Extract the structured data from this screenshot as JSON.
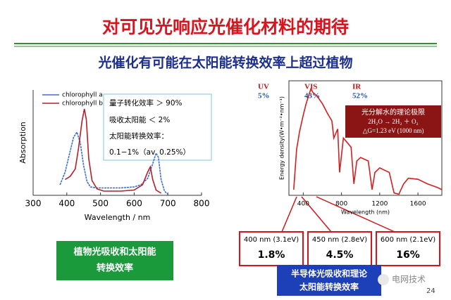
{
  "title": "对可见光响应光催化材料的期待",
  "subtitle": "光催化有可能在太阳能转换效率上超过植物",
  "chart_data": [
    {
      "type": "line",
      "xlabel": "Wavelength / nm",
      "ylabel": "Absorption",
      "xlim": [
        300,
        800
      ],
      "xticks": [
        300,
        400,
        500,
        600,
        700,
        800
      ],
      "ylim": [
        0,
        1
      ],
      "series": [
        {
          "name": "chlorophyll a",
          "color": "#3d6fd0",
          "x": [
            380,
            395,
            410,
            420,
            430,
            440,
            450,
            460,
            470,
            490,
            520,
            560,
            600,
            620,
            640,
            655,
            665,
            672,
            680,
            690,
            700
          ],
          "values": [
            0.1,
            0.22,
            0.42,
            0.55,
            0.6,
            0.5,
            0.28,
            0.13,
            0.08,
            0.07,
            0.07,
            0.07,
            0.08,
            0.1,
            0.16,
            0.3,
            0.4,
            0.36,
            0.15,
            0.04,
            0.01
          ]
        },
        {
          "name": "chlorophyll b",
          "color": "#b0202a",
          "x": [
            395,
            410,
            425,
            435,
            445,
            452,
            458,
            465,
            475,
            490,
            510,
            560,
            600,
            625,
            640,
            648,
            655,
            665,
            680
          ],
          "values": [
            0.15,
            0.18,
            0.25,
            0.45,
            0.7,
            0.82,
            0.72,
            0.35,
            0.14,
            0.06,
            0.04,
            0.04,
            0.05,
            0.1,
            0.22,
            0.27,
            0.15,
            0.05,
            0.02
          ]
        }
      ]
    },
    {
      "type": "line",
      "xlabel": "Wavelength (nm)",
      "ylabel": "Energy density(W•m⁻²•nm⁻¹)",
      "xlim": [
        250,
        1850
      ],
      "xticks": [
        400,
        800,
        1200,
        1600
      ],
      "ylim": [
        0,
        1
      ],
      "series": [
        {
          "name": "solar spectrum",
          "color": "#d02020",
          "x": [
            300,
            330,
            360,
            400,
            430,
            460,
            480,
            500,
            550,
            600,
            650,
            700,
            720,
            760,
            780,
            820,
            900,
            930,
            960,
            1000,
            1080,
            1120,
            1150,
            1200,
            1300,
            1350,
            1400,
            1450,
            1500,
            1600,
            1700,
            1800,
            1850
          ],
          "values": [
            0.05,
            0.4,
            0.55,
            0.7,
            0.8,
            0.88,
            0.93,
            0.9,
            0.86,
            0.8,
            0.72,
            0.65,
            0.5,
            0.58,
            0.2,
            0.5,
            0.42,
            0.1,
            0.3,
            0.33,
            0.3,
            0.05,
            0.2,
            0.24,
            0.2,
            0.02,
            0.01,
            0.1,
            0.15,
            0.14,
            0.1,
            0.07,
            0.05
          ]
        }
      ]
    }
  ],
  "info_box": [
    "量子转化效率 ＞ 90%",
    "吸收太阳能 ＜ 2%",
    "太阳能转换效率：",
    "0.1−1%（av. 0.25%）"
  ],
  "bands": [
    {
      "name": "UV",
      "share": "5%"
    },
    {
      "name": "VIS",
      "share": "43%"
    },
    {
      "name": "IR",
      "share": "52%"
    }
  ],
  "water_box": [
    "光分解水的理论极限",
    "2H₂O → 2H₂ ＋ O₂",
    "△G=1.23 eV (1000 nm)"
  ],
  "efficiency": [
    {
      "label": "400 nm (3.1eV)",
      "value": "1.8%"
    },
    {
      "label": "450 nm (2.8eV)",
      "value": "4.5%"
    },
    {
      "label": "600 nm (2.1eV)",
      "value": "16%"
    }
  ],
  "plant_box": [
    "植物光吸收和太阳能",
    "转换效率"
  ],
  "semiconductor_box": [
    "半导体光吸收和理论",
    "太阳能转换效率"
  ],
  "watermark": "电网技术",
  "page_number": "24"
}
